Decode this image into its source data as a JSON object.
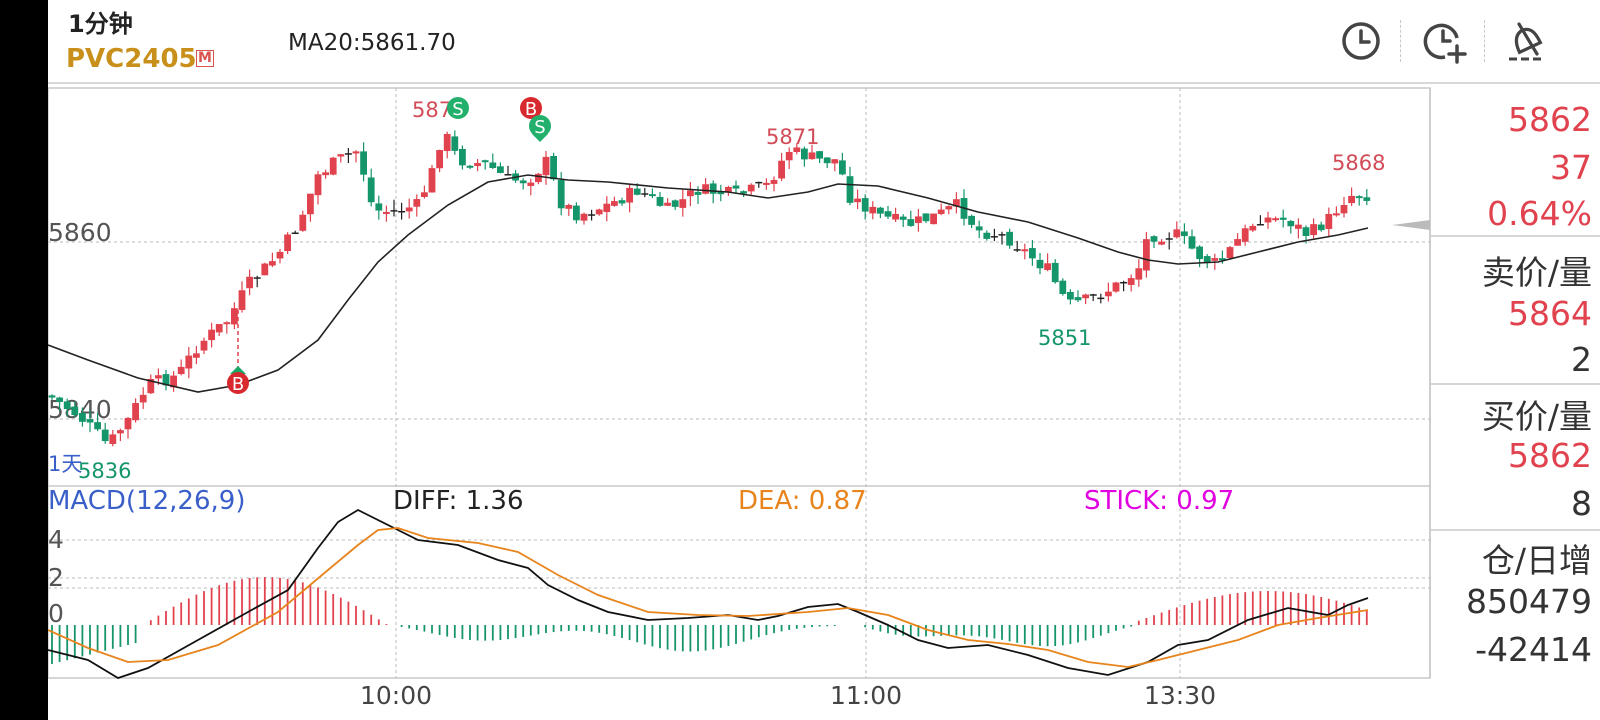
{
  "header": {
    "period": "1分钟",
    "symbol": "PVC2405",
    "badge": "M",
    "ma": "MA20:5861.70"
  },
  "toolbar": [
    {
      "name": "history-clock-icon"
    },
    {
      "name": "add-clock-icon"
    },
    {
      "name": "alarm-bell-icon"
    }
  ],
  "side": {
    "price": "5862",
    "change": "37",
    "change_pct": "0.64%",
    "ask_label": "卖价/量",
    "ask_price": "5864",
    "ask_vol": "2",
    "bid_label": "买价/量",
    "bid_price": "5862",
    "bid_vol": "8",
    "oi_label": "仓/日增",
    "open_interest": "850479",
    "oi_change": "-42414"
  },
  "chart_data": {
    "type": "candlestick",
    "price_axis_labels": [
      "5860",
      "5840"
    ],
    "annotations": {
      "high_left": "5873",
      "high_mid": "5871",
      "low_left": "5836",
      "low_right": "5851",
      "last_high": "5868",
      "range_label": "1天"
    },
    "trade_markers": [
      "B",
      "S",
      "B",
      "S"
    ],
    "time_labels": [
      "10:00",
      "11:00",
      "13:30"
    ],
    "macd": {
      "label": "MACD(12,26,9)",
      "diff": "DIFF: 1.36",
      "dea": "DEA: 0.87",
      "stick": "STICK: 0.97",
      "y_ticks": [
        "4",
        "2",
        "0"
      ]
    },
    "colors": {
      "up": "#e0424e",
      "down": "#14956a",
      "ma": "#222222",
      "dea": "#e8841c",
      "stick": "#e000e0",
      "macd_label": "#3a5fc8"
    }
  }
}
